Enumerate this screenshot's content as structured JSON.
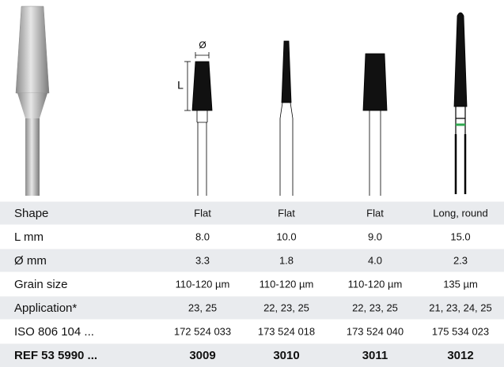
{
  "diagram": {
    "diameter_label": "Ø",
    "length_label": "L"
  },
  "table": {
    "rows": [
      {
        "label": "Shape",
        "values": [
          "Flat",
          "Flat",
          "Flat",
          "Long, round"
        ]
      },
      {
        "label": "L mm",
        "values": [
          "8.0",
          "10.0",
          "9.0",
          "15.0"
        ]
      },
      {
        "label": "Ø mm",
        "values": [
          "3.3",
          "1.8",
          "4.0",
          "2.3"
        ]
      },
      {
        "label": "Grain size",
        "values": [
          "110-120 µm",
          "110-120 µm",
          "110-120 µm",
          "135 µm"
        ]
      },
      {
        "label": "Application*",
        "values": [
          "23, 25",
          "22, 23, 25",
          "22, 23, 25",
          "21, 23, 24, 25"
        ]
      },
      {
        "label": "ISO 806 104 ...",
        "values": [
          "172 524 033",
          "173 524 018",
          "173 524 040",
          "175 534 023"
        ]
      },
      {
        "label": "REF 53 5990 ...",
        "values": [
          "3009",
          "3010",
          "3011",
          "3012"
        ]
      }
    ]
  }
}
